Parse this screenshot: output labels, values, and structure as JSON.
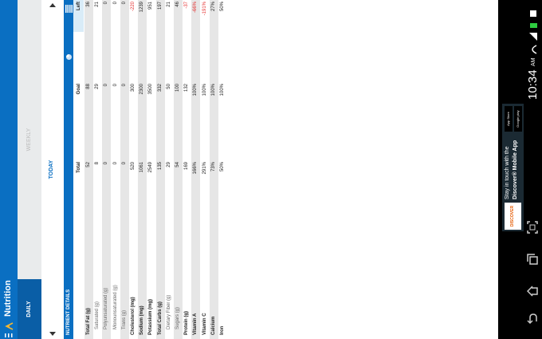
{
  "app_bar": {
    "title": "Nutrition"
  },
  "tabs": [
    "DAILY",
    "WEEKLY"
  ],
  "date": "TODAY",
  "section": "NUTRIENT DETAILS",
  "table": {
    "columns": [
      "Total",
      "Goal",
      "Left"
    ],
    "rows": [
      {
        "name": "Total Fat (g)",
        "total": "52",
        "goal": "88",
        "left": "36",
        "indent": false
      },
      {
        "name": "Saturated (g)",
        "total": "8",
        "goal": "29",
        "left": "21",
        "indent": true
      },
      {
        "name": "Polyunsaturated (g)",
        "total": "0",
        "goal": "0",
        "left": "0",
        "indent": true
      },
      {
        "name": "Monounsaturated (g)",
        "total": "0",
        "goal": "0",
        "left": "0",
        "indent": true
      },
      {
        "name": "Trans (g)",
        "total": "0",
        "goal": "0",
        "left": "0",
        "indent": true
      },
      {
        "name": "Cholesterol (mg)",
        "total": "520",
        "goal": "300",
        "left": "-220",
        "indent": false
      },
      {
        "name": "Sodium (mg)",
        "total": "1061",
        "goal": "2300",
        "left": "1239",
        "indent": false
      },
      {
        "name": "Potassium (mg)",
        "total": "2549",
        "goal": "3500",
        "left": "951",
        "indent": false
      },
      {
        "name": "Total Carbs (g)",
        "total": "135",
        "goal": "332",
        "left": "197",
        "indent": false
      },
      {
        "name": "Dietary Fiber (g)",
        "total": "29",
        "goal": "50",
        "left": "21",
        "indent": true
      },
      {
        "name": "Sugars (g)",
        "total": "54",
        "goal": "100",
        "left": "46",
        "indent": true
      },
      {
        "name": "Protein (g)",
        "total": "169",
        "goal": "132",
        "left": "-37",
        "indent": false
      },
      {
        "name": "Vitamin A",
        "total": "166%",
        "goal": "100%",
        "left": "-66%",
        "indent": false
      },
      {
        "name": "Vitamin C",
        "total": "291%",
        "goal": "100%",
        "left": "-191%",
        "indent": false
      },
      {
        "name": "Calcium",
        "total": "73%",
        "goal": "100%",
        "left": "27%",
        "indent": false
      },
      {
        "name": "Iron",
        "total": "50%",
        "goal": "100%",
        "left": "50%",
        "indent": false
      }
    ]
  },
  "ad": {
    "line1": "Stay in touch with the",
    "line2": "Discover® Mobile App",
    "brand": "DISCOVER",
    "store1": "App Store",
    "store2": "Google play"
  },
  "status": {
    "time": "10:34",
    "ampm": "AM"
  }
}
